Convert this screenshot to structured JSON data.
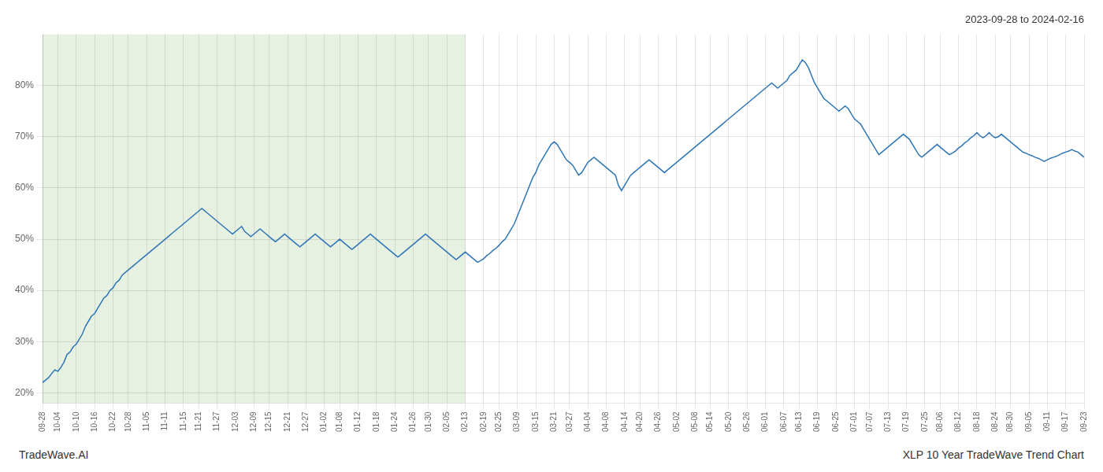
{
  "chart_data": {
    "type": "line",
    "title": "2023-09-28 to 2024-02-16",
    "annotations": [
      "TradeWave.AI",
      "XLP 10 Year TradeWave Trend Chart"
    ],
    "color": "#2e75b6",
    "shade": {
      "start": "09-28",
      "end": "02-13",
      "color": "#d9ead3"
    },
    "ylim": [
      18,
      90
    ],
    "yticks": [
      {
        "value": 20,
        "label": "20%"
      },
      {
        "value": 30,
        "label": "30%"
      },
      {
        "value": 40,
        "label": "40%"
      },
      {
        "value": 50,
        "label": "50%"
      },
      {
        "value": 60,
        "label": "60%"
      },
      {
        "value": 70,
        "label": "70%"
      },
      {
        "value": 80,
        "label": "80%"
      }
    ],
    "grid": true,
    "categories": [
      "09-28",
      null,
      null,
      null,
      null,
      "10-04",
      null,
      null,
      null,
      null,
      null,
      "10-10",
      null,
      null,
      null,
      null,
      null,
      "10-16",
      null,
      null,
      null,
      null,
      null,
      "10-22",
      null,
      null,
      null,
      null,
      "10-28",
      null,
      null,
      null,
      null,
      null,
      "11-05",
      null,
      null,
      null,
      null,
      null,
      "11-11",
      null,
      null,
      null,
      null,
      null,
      "11-15",
      null,
      null,
      null,
      null,
      "11-21",
      null,
      null,
      null,
      null,
      null,
      "11-27",
      null,
      null,
      null,
      null,
      null,
      "12-03",
      null,
      null,
      null,
      null,
      null,
      "12-09",
      null,
      null,
      null,
      null,
      "12-15",
      null,
      null,
      null,
      null,
      null,
      "12-21",
      null,
      null,
      null,
      null,
      null,
      "12-27",
      null,
      null,
      null,
      null,
      null,
      "01-02",
      null,
      null,
      null,
      null,
      "01-08",
      null,
      null,
      null,
      null,
      null,
      "01-12",
      null,
      null,
      null,
      null,
      null,
      "01-18",
      null,
      null,
      null,
      null,
      null,
      "01-24",
      null,
      null,
      null,
      null,
      null,
      "01-26",
      null,
      null,
      null,
      null,
      "01-30",
      null,
      null,
      null,
      null,
      null,
      "02-05",
      null,
      null,
      null,
      null,
      null,
      "02-13",
      null,
      null,
      null,
      null,
      null,
      "02-19",
      null,
      null,
      null,
      null,
      "02-25",
      null,
      null,
      null,
      null,
      null,
      "03-09",
      null,
      null,
      null,
      null,
      null,
      "03-15",
      null,
      null,
      null,
      null,
      null,
      "03-21",
      null,
      null,
      null,
      null,
      "03-27",
      null,
      null,
      null,
      null,
      null,
      "04-04",
      null,
      null,
      null,
      null,
      null,
      "04-08",
      null,
      null,
      null,
      null,
      null,
      "04-14",
      null,
      null,
      null,
      null,
      "04-20",
      null,
      null,
      null,
      null,
      null,
      "04-26",
      null,
      null,
      null,
      null,
      null,
      "05-02",
      null,
      null,
      null,
      null,
      null,
      "05-08",
      null,
      null,
      null,
      null,
      "05-14",
      null,
      null,
      null,
      null,
      null,
      "05-20",
      null,
      null,
      null,
      null,
      null,
      "05-26",
      null,
      null,
      null,
      null,
      null,
      "06-01",
      null,
      null,
      null,
      null,
      null,
      "06-07",
      null,
      null,
      null,
      null,
      "06-13",
      null,
      null,
      null,
      null,
      null,
      "06-19",
      null,
      null,
      null,
      null,
      null,
      "06-25",
      null,
      null,
      null,
      null,
      null,
      "07-01",
      null,
      null,
      null,
      null,
      "07-07",
      null,
      null,
      null,
      null,
      null,
      "07-13",
      null,
      null,
      null,
      null,
      null,
      "07-19",
      null,
      null,
      null,
      null,
      null,
      "07-25",
      null,
      null,
      null,
      null,
      "08-06",
      null,
      null,
      null,
      null,
      null,
      "08-12",
      null,
      null,
      null,
      null,
      null,
      "08-18",
      null,
      null,
      null,
      null,
      null,
      "08-24",
      null,
      null,
      null,
      null,
      "08-30",
      null,
      null,
      null,
      null,
      null,
      "09-05",
      null,
      null,
      null,
      null,
      null,
      "09-11",
      null,
      null,
      null,
      null,
      null,
      "09-17",
      null,
      null,
      null,
      null,
      null,
      "09-23"
    ],
    "values": [
      22.0,
      22.5,
      23.0,
      23.8,
      24.5,
      24.2,
      25.0,
      26.0,
      27.5,
      28.0,
      29.0,
      29.5,
      30.5,
      31.5,
      33.0,
      34.0,
      35.0,
      35.5,
      36.5,
      37.5,
      38.5,
      39.0,
      40.0,
      40.5,
      41.5,
      42.0,
      43.0,
      43.5,
      44.0,
      44.5,
      45.0,
      45.5,
      46.0,
      46.5,
      47.0,
      47.5,
      48.0,
      48.5,
      49.0,
      49.5,
      50.0,
      50.5,
      51.0,
      51.5,
      52.0,
      52.5,
      53.0,
      53.5,
      54.0,
      54.5,
      55.0,
      55.5,
      56.0,
      55.5,
      55.0,
      54.5,
      54.0,
      53.5,
      53.0,
      52.5,
      52.0,
      51.5,
      51.0,
      51.5,
      52.0,
      52.5,
      51.5,
      51.0,
      50.5,
      51.0,
      51.5,
      52.0,
      51.5,
      51.0,
      50.5,
      50.0,
      49.5,
      50.0,
      50.5,
      51.0,
      50.5,
      50.0,
      49.5,
      49.0,
      48.5,
      49.0,
      49.5,
      50.0,
      50.5,
      51.0,
      50.5,
      50.0,
      49.5,
      49.0,
      48.5,
      49.0,
      49.5,
      50.0,
      49.5,
      49.0,
      48.5,
      48.0,
      48.5,
      49.0,
      49.5,
      50.0,
      50.5,
      51.0,
      50.5,
      50.0,
      49.5,
      49.0,
      48.5,
      48.0,
      47.5,
      47.0,
      46.5,
      47.0,
      47.5,
      48.0,
      48.5,
      49.0,
      49.5,
      50.0,
      50.5,
      51.0,
      50.5,
      50.0,
      49.5,
      49.0,
      48.5,
      48.0,
      47.5,
      47.0,
      46.5,
      46.0,
      46.5,
      47.0,
      47.5,
      47.0,
      46.5,
      46.0,
      45.5,
      45.8,
      46.2,
      46.8,
      47.2,
      47.8,
      48.2,
      48.8,
      49.5,
      50.0,
      51.0,
      52.0,
      53.0,
      54.5,
      56.0,
      57.5,
      59.0,
      60.5,
      62.0,
      63.0,
      64.5,
      65.5,
      66.5,
      67.5,
      68.5,
      69.0,
      68.5,
      67.5,
      66.5,
      65.5,
      65.0,
      64.5,
      63.5,
      62.5,
      63.0,
      64.0,
      65.0,
      65.5,
      66.0,
      65.5,
      65.0,
      64.5,
      64.0,
      63.5,
      63.0,
      62.5,
      60.5,
      59.5,
      60.5,
      61.5,
      62.5,
      63.0,
      63.5,
      64.0,
      64.5,
      65.0,
      65.5,
      65.0,
      64.5,
      64.0,
      63.5,
      63.0,
      63.5,
      64.0,
      64.5,
      65.0,
      65.5,
      66.0,
      66.5,
      67.0,
      67.5,
      68.0,
      68.5,
      69.0,
      69.5,
      70.0,
      70.5,
      71.0,
      71.5,
      72.0,
      72.5,
      73.0,
      73.5,
      74.0,
      74.5,
      75.0,
      75.5,
      76.0,
      76.5,
      77.0,
      77.5,
      78.0,
      78.5,
      79.0,
      79.5,
      80.0,
      80.5,
      80.0,
      79.5,
      80.0,
      80.5,
      81.0,
      82.0,
      82.5,
      83.0,
      84.0,
      85.0,
      84.5,
      83.5,
      82.0,
      80.5,
      79.5,
      78.5,
      77.5,
      77.0,
      76.5,
      76.0,
      75.5,
      75.0,
      75.5,
      76.0,
      75.5,
      74.5,
      73.5,
      73.0,
      72.5,
      71.5,
      70.5,
      69.5,
      68.5,
      67.5,
      66.5,
      67.0,
      67.5,
      68.0,
      68.5,
      69.0,
      69.5,
      70.0,
      70.5,
      70.0,
      69.5,
      68.5,
      67.5,
      66.5,
      66.0,
      66.5,
      67.0,
      67.5,
      68.0,
      68.5,
      68.0,
      67.5,
      67.0,
      66.5,
      66.8,
      67.2,
      67.8,
      68.2,
      68.8,
      69.2,
      69.8,
      70.2,
      70.8,
      70.2,
      69.8,
      70.2,
      70.8,
      70.2,
      69.8,
      70.0,
      70.5,
      70.0,
      69.5,
      69.0,
      68.5,
      68.0,
      67.5,
      67.0,
      66.8,
      66.5,
      66.3,
      66.0,
      65.8,
      65.5,
      65.2,
      65.5,
      65.8,
      66.0,
      66.2,
      66.5,
      66.8,
      67.0,
      67.2,
      67.5,
      67.2,
      67.0,
      66.5,
      66.0
    ]
  }
}
